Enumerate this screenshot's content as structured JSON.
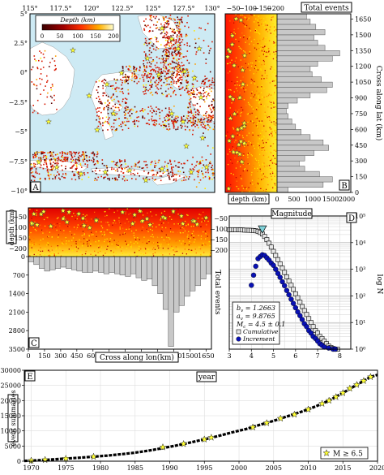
{
  "colors": {
    "ocean": "#cdeaf4",
    "land": "#ffffff",
    "event_dark": "#5a0000",
    "event_red": "#d81800",
    "event_orange": "#ff9c00",
    "event_yellow": "#ffe800",
    "star": "#ffff33",
    "bar_gray": "#c8c8c8",
    "cumulative_fill": "#e6e6e6",
    "increment_fill": "#0a12b4",
    "bvalue_marker": "#7fd1d8"
  },
  "panel_a": {
    "label": "A",
    "type": "map",
    "lon_ticks": [
      "115°",
      "117.5°",
      "120°",
      "122.5°",
      "125°",
      "127.5°",
      "130°"
    ],
    "lat_ticks": [
      "5°",
      "2.5°",
      "0°",
      "−2.5°",
      "−5°",
      "−7.5°",
      "−10°"
    ],
    "colorbar": {
      "title": "Depth (km)",
      "ticks": [
        "0",
        "50",
        "100",
        "150",
        "200"
      ],
      "range": [
        0,
        200
      ]
    }
  },
  "panel_b": {
    "label": "B",
    "top_ticks": [
      "−50",
      "−100",
      "−150",
      "−200"
    ],
    "top_title": "Total events",
    "bottom_ticks": [
      "500",
      "1000",
      "1500",
      "2000"
    ],
    "bottom_left_label": "depth (km)",
    "bottom_zero": "0",
    "right_label": "Cross along lat (km)",
    "right_ticks": [
      "0",
      "150",
      "300",
      "450",
      "600",
      "750",
      "900",
      "1050",
      "1200",
      "1350",
      "1500",
      "1650"
    ]
  },
  "panel_c": {
    "label": "C",
    "left_label": "depth (km)",
    "left_ticks": [
      "−50",
      "−100",
      "−150",
      "−200"
    ],
    "hist_ticks": [
      "0",
      "700",
      "1400",
      "2100",
      "2800",
      "3500"
    ],
    "right_label": "Total events",
    "x_title": "Cross along lon(km)",
    "x_ticks": [
      "0",
      "150",
      "300",
      "450",
      "600",
      "750",
      "900",
      "1050",
      "1200",
      "1350",
      "1500",
      "1650"
    ]
  },
  "panel_d": {
    "label": "D",
    "title": "Magnitude",
    "x_ticks": [
      "3",
      "4",
      "5",
      "6",
      "7",
      "8"
    ],
    "left_ticks": [
      "−50",
      "−100",
      "−150",
      "−200"
    ],
    "right_ticks": [
      "10⁰",
      "10¹",
      "10²",
      "10³",
      "10⁴",
      "10⁵"
    ],
    "right_label": "log N",
    "stats": {
      "b": "b",
      "b_sub": "v",
      "b_val": " = 1.2663",
      "a": "a",
      "a_sub": "v",
      "a_val": " = 9.8765",
      "m": "M",
      "m_sub": "c",
      "m_val": " = 4.5 ± 0.1"
    },
    "legend": [
      "Cumulative",
      "Increment"
    ]
  },
  "panel_e": {
    "label": "E",
    "title": "year",
    "y_label": "event summaries",
    "legend": "M ≥ 6.5",
    "x_ticks": [
      "1970",
      "1975",
      "1980",
      "1985",
      "1990",
      "1995",
      "2000",
      "2005",
      "2010",
      "2015",
      "2020"
    ],
    "y_ticks": [
      "0",
      "5000",
      "10000",
      "15000",
      "20000",
      "25000",
      "30000"
    ]
  },
  "chart_data": [
    {
      "type": "bar",
      "panel": "B",
      "orientation": "horizontal",
      "ylabel": "Cross along lat (km)",
      "xlabel": "Total events",
      "xlim": [
        0,
        2000
      ],
      "ylim": [
        0,
        1700
      ],
      "bin_width_km": 50,
      "bins_start_km": [
        0,
        50,
        100,
        150,
        200,
        250,
        300,
        350,
        400,
        450,
        500,
        550,
        600,
        650,
        700,
        750,
        800,
        850,
        900,
        950,
        1000,
        1050,
        1100,
        1150,
        1200,
        1250,
        1300,
        1350,
        1400,
        1450,
        1500,
        1550,
        1600,
        1650
      ],
      "values": [
        300,
        1250,
        1500,
        1150,
        750,
        600,
        750,
        1000,
        1400,
        1250,
        900,
        650,
        500,
        400,
        300,
        250,
        300,
        550,
        900,
        1350,
        1500,
        1200,
        950,
        900,
        1100,
        1500,
        1700,
        1300,
        1100,
        1000,
        1300,
        1050,
        900,
        800
      ]
    },
    {
      "type": "bar",
      "panel": "C",
      "orientation": "vertical",
      "xlabel": "Cross along lon(km)",
      "ylabel": "Total events",
      "ylim": [
        0,
        3500
      ],
      "xlim": [
        0,
        1700
      ],
      "bin_width_km": 50,
      "bins_start_km": [
        0,
        50,
        100,
        150,
        200,
        250,
        300,
        350,
        400,
        450,
        500,
        550,
        600,
        650,
        700,
        750,
        800,
        850,
        900,
        950,
        1000,
        1050,
        1100,
        1150,
        1200,
        1250,
        1300,
        1350,
        1400,
        1450,
        1500,
        1550,
        1600,
        1650
      ],
      "values": [
        200,
        300,
        450,
        550,
        500,
        450,
        400,
        450,
        500,
        550,
        600,
        600,
        550,
        600,
        650,
        600,
        650,
        700,
        750,
        650,
        800,
        900,
        850,
        1100,
        1400,
        2000,
        3400,
        2100,
        1850,
        1500,
        1300,
        1100,
        850,
        650
      ]
    },
    {
      "type": "scatter",
      "panel": "D",
      "xlabel": "Magnitude",
      "ylabel": "log N",
      "xlim": [
        3,
        8.5
      ],
      "ylim": [
        1,
        100000
      ],
      "log_y": true,
      "series": [
        {
          "name": "Cumulative",
          "x": [
            3.0,
            3.1,
            3.2,
            3.3,
            3.4,
            3.5,
            3.6,
            3.7,
            3.8,
            3.9,
            4.0,
            4.1,
            4.2,
            4.3,
            4.4,
            4.5,
            4.6,
            4.7,
            4.8,
            4.9,
            5.0,
            5.1,
            5.2,
            5.3,
            5.4,
            5.5,
            5.6,
            5.7,
            5.8,
            5.9,
            6.0,
            6.1,
            6.2,
            6.3,
            6.4,
            6.5,
            6.6,
            6.7,
            6.8,
            6.9,
            7.0,
            7.1,
            7.2,
            7.3,
            7.4,
            7.5,
            7.6,
            7.7,
            7.8,
            7.9
          ],
          "y": [
            30500,
            30480,
            30450,
            30400,
            30300,
            30100,
            29800,
            29500,
            29200,
            29000,
            28800,
            28400,
            27800,
            26500,
            24000,
            21000,
            17000,
            13000,
            9500,
            6800,
            4700,
            3300,
            2300,
            1600,
            1100,
            760,
            520,
            360,
            250,
            175,
            120,
            85,
            58,
            40,
            28,
            20,
            14,
            10,
            7,
            5,
            4,
            3,
            2.5,
            2,
            1.6,
            1.3,
            1.15,
            1.05,
            1.0,
            1.0
          ]
        },
        {
          "name": "Increment",
          "x": [
            4.0,
            4.1,
            4.2,
            4.3,
            4.4,
            4.5,
            4.6,
            4.7,
            4.8,
            4.9,
            5.0,
            5.1,
            5.2,
            5.3,
            5.4,
            5.5,
            5.6,
            5.7,
            5.8,
            5.9,
            6.0,
            6.1,
            6.2,
            6.3,
            6.4,
            6.5,
            6.6,
            6.7,
            6.8,
            6.9,
            7.0,
            7.1,
            7.2,
            7.3,
            7.5,
            7.7,
            7.8
          ],
          "y": [
            250,
            600,
            1300,
            2500,
            3000,
            3500,
            3300,
            2700,
            2200,
            1700,
            1400,
            1000,
            700,
            500,
            340,
            240,
            160,
            110,
            75,
            52,
            36,
            25,
            18,
            13,
            9,
            7,
            5,
            4,
            3,
            2.5,
            2,
            1.6,
            1.4,
            1.2,
            1.1,
            1.0,
            1.0
          ]
        }
      ],
      "mc_marker": {
        "x": 4.5,
        "y": 30000
      },
      "stats": {
        "b_value": 1.2663,
        "a_value": 9.8765,
        "mc": "4.5 ± 0.1"
      }
    },
    {
      "type": "line",
      "panel": "E",
      "xlabel": "year",
      "ylabel": "event summaries",
      "xlim": [
        1969,
        2020
      ],
      "ylim": [
        0,
        30000
      ],
      "series": [
        {
          "name": "",
          "x": [
            1969,
            1971,
            1973,
            1975,
            1977,
            1979,
            1981,
            1983,
            1985,
            1987,
            1989,
            1991,
            1993,
            1995,
            1997,
            1999,
            2001,
            2003,
            2005,
            2007,
            2009,
            2011,
            2013,
            2015,
            2017,
            2019,
            2020
          ],
          "y": [
            100,
            300,
            550,
            850,
            1150,
            1500,
            1850,
            2300,
            2800,
            3500,
            4300,
            5200,
            6200,
            7200,
            8300,
            9500,
            10600,
            12000,
            13300,
            14800,
            16300,
            18000,
            20000,
            22500,
            25200,
            27800,
            28500
          ]
        },
        {
          "name": "M ≥ 6.5",
          "x": [
            1970,
            1972,
            1975,
            1979,
            1989,
            1992,
            1995,
            1996,
            2002,
            2004,
            2006,
            2008,
            2010,
            2012,
            2013,
            2014,
            2015,
            2016,
            2017,
            2018,
            2019
          ],
          "y": [
            200,
            450,
            850,
            1500,
            4600,
            5700,
            7200,
            7800,
            11200,
            12600,
            14100,
            15400,
            17100,
            19000,
            20000,
            21200,
            22500,
            24000,
            25200,
            26500,
            27800
          ]
        }
      ]
    }
  ]
}
